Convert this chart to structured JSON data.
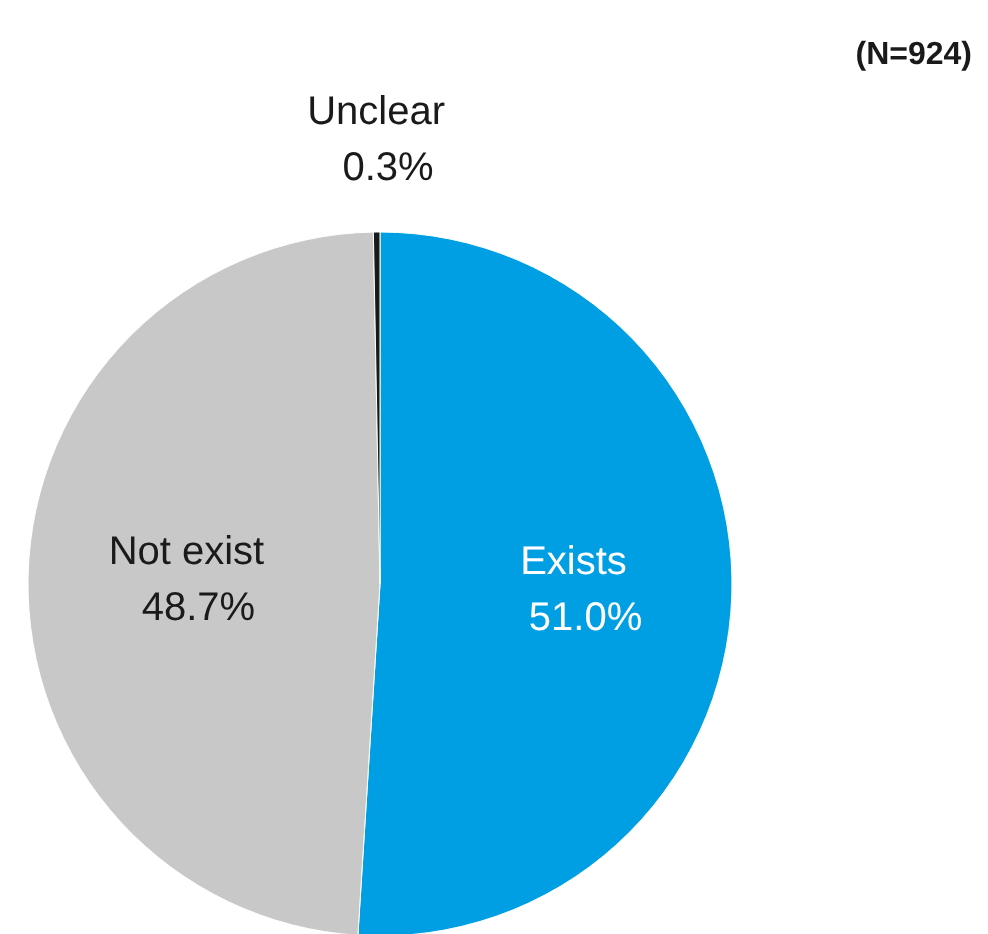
{
  "chart_data": {
    "type": "pie",
    "categories": [
      "Exists",
      "Not exist",
      "Unclear"
    ],
    "values": [
      51.0,
      48.7,
      0.3
    ],
    "value_labels": [
      "51.0%",
      "48.7%",
      "0.3%"
    ],
    "colors": [
      "#009fe3",
      "#c8c8c8",
      "#1a1a1a"
    ],
    "annotations": [
      "(N=924)"
    ]
  }
}
